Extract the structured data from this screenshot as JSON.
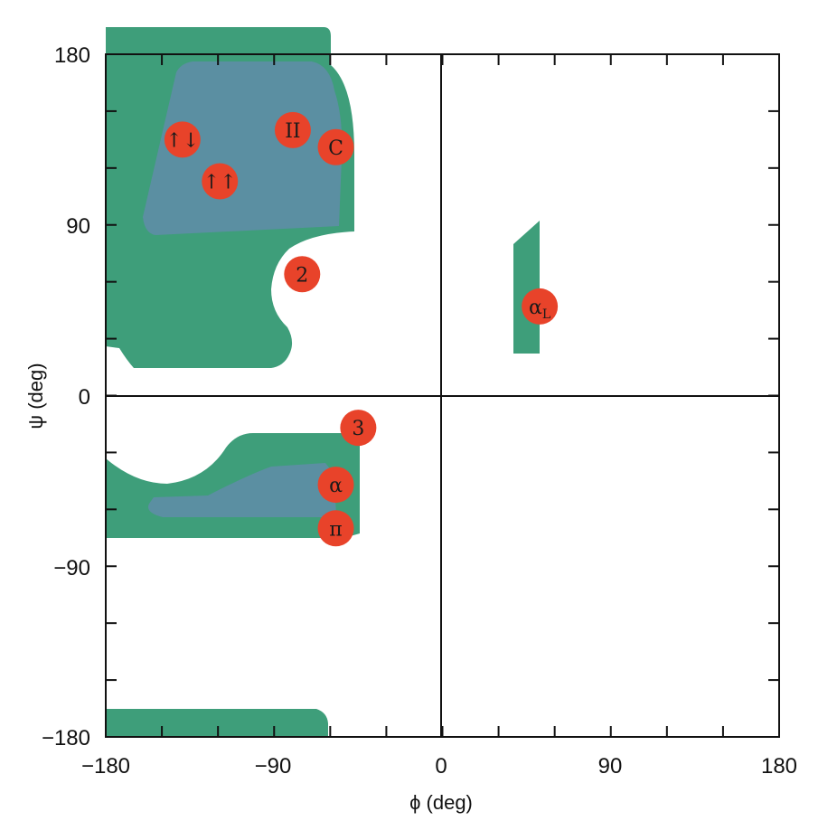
{
  "chart_data": {
    "type": "scatter",
    "xlabel": "ϕ (deg)",
    "ylabel": "ψ (deg)",
    "xlim": [
      -180,
      180
    ],
    "ylim": [
      -180,
      180
    ],
    "x_ticks": [
      "−180",
      "−90",
      "0",
      "90",
      "180"
    ],
    "y_ticks": [
      "180",
      "90",
      "0",
      "−90",
      "−180"
    ],
    "grid": false,
    "colors": {
      "allowed_region": "#3e9e7a",
      "fully_allowed_region": "#5b8fa2",
      "marker": "#e8432a"
    },
    "points": [
      {
        "label": "↑↓",
        "x": -139,
        "y": 135
      },
      {
        "label": "↑↑",
        "x": -119,
        "y": 113
      },
      {
        "label": "II",
        "x": -80,
        "y": 140
      },
      {
        "label": "C",
        "x": -57,
        "y": 131
      },
      {
        "label": "2",
        "x": -75,
        "y": 64
      },
      {
        "label": "αL",
        "x": 52,
        "y": 47
      },
      {
        "label": "3",
        "x": -45,
        "y": -17
      },
      {
        "label": "α",
        "x": -57,
        "y": -47
      },
      {
        "label": "π",
        "x": -57,
        "y": -70
      }
    ]
  }
}
